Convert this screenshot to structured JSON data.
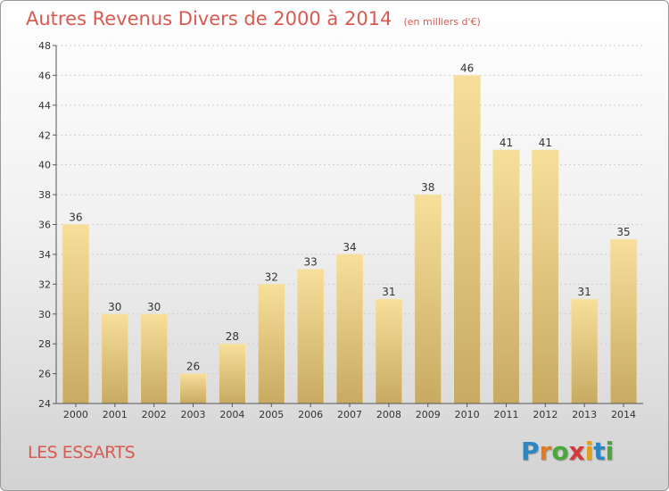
{
  "header": {
    "title": "Autres Revenus Divers de 2000 à 2014",
    "unit": "(en milliers d'€)"
  },
  "footer": {
    "commune": "LES ESSARTS",
    "logo": {
      "letters": [
        "P",
        "r",
        "o",
        "x",
        "i",
        "t",
        "i"
      ],
      "colors": [
        "#2e86c1",
        "#e07b20",
        "#4aa83a",
        "#d63a3a",
        "#e0a020",
        "#2e86c1",
        "#4aa83a"
      ]
    }
  },
  "chart_data": {
    "type": "bar",
    "title": "Autres Revenus Divers de 2000 à 2014",
    "subtitle": "(en milliers d'€)",
    "xlabel": "",
    "ylabel": "",
    "categories": [
      "2000",
      "2001",
      "2002",
      "2003",
      "2004",
      "2005",
      "2006",
      "2007",
      "2008",
      "2009",
      "2010",
      "2011",
      "2012",
      "2013",
      "2014"
    ],
    "values": [
      36,
      30,
      30,
      26,
      28,
      32,
      33,
      34,
      31,
      38,
      46,
      41,
      41,
      31,
      35
    ],
    "ylim": [
      24,
      48
    ],
    "yticks": [
      24,
      26,
      28,
      30,
      32,
      34,
      36,
      38,
      40,
      42,
      44,
      46,
      48
    ],
    "grid": true,
    "legend": "none",
    "colors": {
      "bar_top": "#f7df9a",
      "bar_bottom": "#c8aa62",
      "grid": "#cccccc",
      "axis": "#555555"
    }
  }
}
